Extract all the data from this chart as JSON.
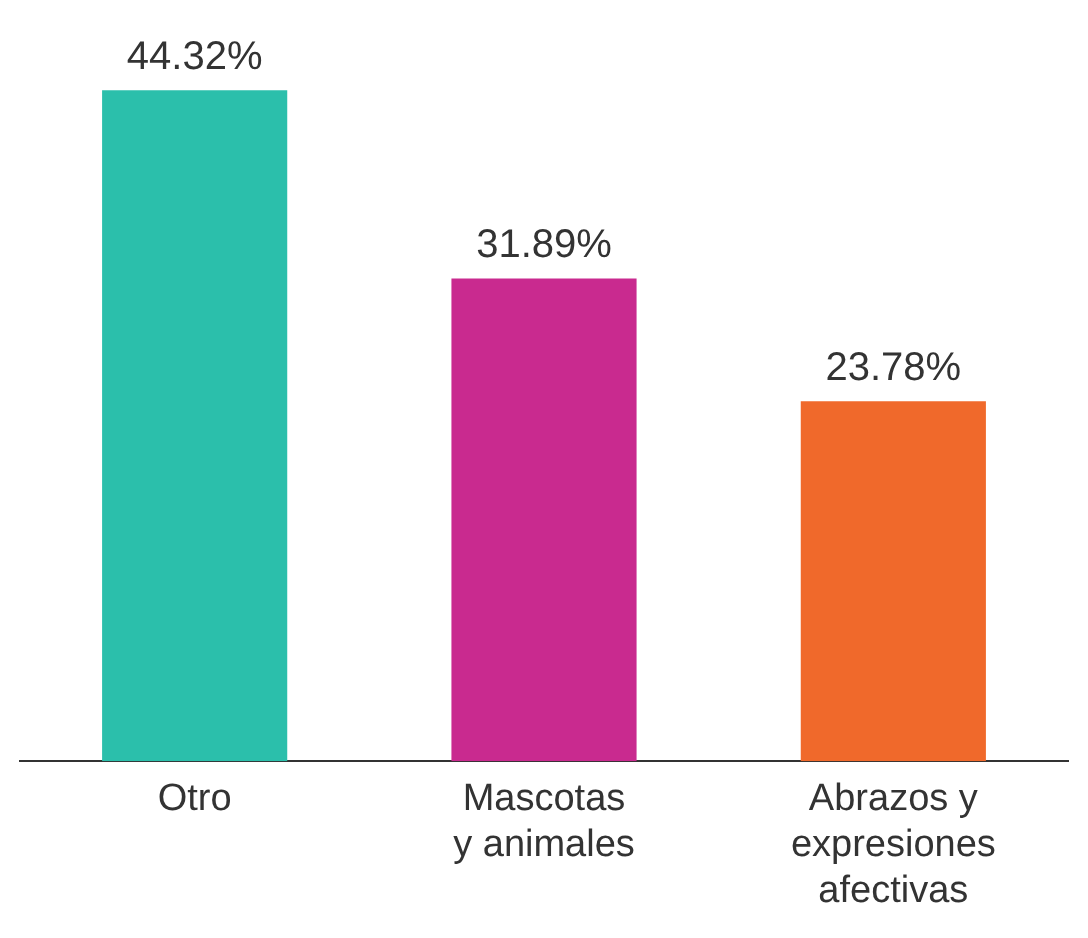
{
  "chart_data": {
    "type": "bar",
    "categories": [
      "Otro",
      "Mascotas y animales",
      "Abrazos y expresiones afectivas"
    ],
    "values": [
      44.32,
      31.89,
      23.78
    ],
    "colors": [
      "#2bbfab",
      "#c92a8f",
      "#f0692b"
    ],
    "value_labels": [
      "44.32%",
      "31.89%",
      "23.78%"
    ],
    "grid": false,
    "legend": false
  }
}
